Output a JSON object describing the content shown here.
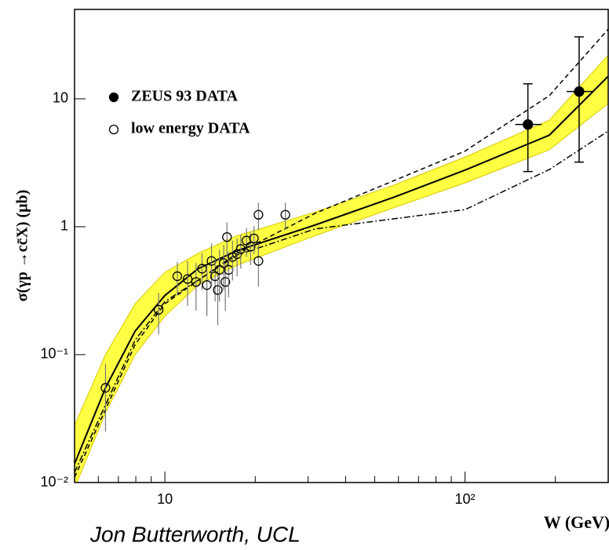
{
  "chart_data": {
    "type": "scatter",
    "y_label": "σ(γp →cc̄X) (μb)",
    "x_label": "W (GeV)",
    "log_x": true,
    "log_y": true,
    "legend": "upper left",
    "xlim": [
      5,
      300
    ],
    "ylim": [
      0.01,
      50
    ],
    "xticks": [
      10,
      {
        "value": 100,
        "label": "10²"
      }
    ],
    "xminorticks": [
      6,
      7,
      8,
      9,
      20,
      30,
      40,
      50,
      60,
      70,
      80,
      90,
      200,
      300
    ],
    "yticks": [
      {
        "value": 0.01,
        "label": "10⁻²"
      },
      {
        "value": 0.1,
        "label": "10⁻¹"
      },
      1,
      10
    ],
    "series": [
      {
        "name": "ZEUS 93 DATA",
        "marker": "filled",
        "color": "#000000",
        "x": [
          162,
          240
        ],
        "values": [
          6.3,
          11.4
        ],
        "err_low": [
          3.6,
          8.2
        ],
        "err_high": [
          6.8,
          19.1
        ],
        "xerr_low": [
          15,
          22
        ],
        "xerr_high": [
          18,
          26
        ]
      },
      {
        "name": "low energy DATA",
        "marker": "open",
        "color": "#000000",
        "x": [
          6.34,
          9.53,
          11.0,
          11.9,
          12.7,
          13.3,
          13.8,
          14.3,
          14.7,
          15.0,
          15.2,
          15.7,
          15.9,
          16.1,
          16.3,
          16.8,
          17.4,
          17.9,
          18.7,
          19.3,
          19.8,
          20.5,
          20.5,
          25.2
        ],
        "values": [
          0.055,
          0.224,
          0.41,
          0.39,
          0.37,
          0.47,
          0.35,
          0.54,
          0.41,
          0.32,
          0.46,
          0.52,
          0.37,
          0.83,
          0.46,
          0.58,
          0.61,
          0.67,
          0.78,
          0.7,
          0.81,
          1.24,
          0.54,
          1.24
        ],
        "err": [
          0.03,
          0.08,
          0.12,
          0.15,
          0.15,
          0.15,
          0.15,
          0.2,
          0.15,
          0.15,
          0.2,
          0.2,
          0.15,
          0.25,
          0.18,
          0.2,
          0.2,
          0.2,
          0.2,
          0.2,
          0.2,
          0.3,
          0.2,
          0.3
        ]
      }
    ],
    "curves": [
      {
        "style": "band",
        "color": "#ffff44",
        "x": [
          5,
          6.34,
          7.96,
          10,
          12.9,
          17.4,
          31.6,
          57.5,
          100,
          191,
          300
        ],
        "lower": [
          0.009,
          0.035,
          0.1,
          0.2,
          0.35,
          0.5,
          0.85,
          1.4,
          2.2,
          4.0,
          9.2
        ],
        "upper": [
          0.028,
          0.1,
          0.25,
          0.44,
          0.62,
          0.85,
          1.3,
          2.1,
          3.5,
          6.8,
          22
        ]
      },
      {
        "style": "solid",
        "color": "#000000",
        "x": [
          5,
          6.34,
          7.96,
          10,
          12.9,
          17.4,
          31.6,
          57.5,
          100,
          191,
          300
        ],
        "values": [
          0.014,
          0.055,
          0.153,
          0.29,
          0.47,
          0.65,
          1.03,
          1.69,
          2.77,
          5.2,
          15
        ]
      },
      {
        "style": "dashed",
        "color": "#000000",
        "x": [
          5,
          7.96,
          10,
          17.4,
          31.6,
          100,
          191,
          300
        ],
        "values": [
          0.011,
          0.12,
          0.25,
          0.62,
          1.27,
          3.9,
          10.6,
          35
        ]
      },
      {
        "style": "dashdot",
        "color": "#000000",
        "x": [
          5,
          7.96,
          10,
          17.4,
          31.6,
          100,
          191,
          300
        ],
        "values": [
          0.012,
          0.13,
          0.26,
          0.6,
          0.96,
          1.36,
          2.8,
          5.6
        ]
      }
    ]
  },
  "footer": "Jon Butterworth, UCL"
}
